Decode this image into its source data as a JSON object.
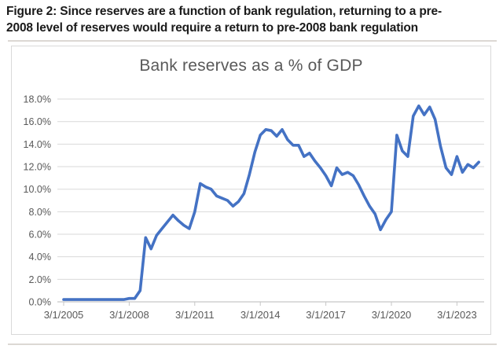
{
  "figure": {
    "caption_lines": [
      "Figure 2: Since reserves are a function of bank regulation, returning to a pre-",
      "2008 level of reserves would require a return to pre-2008 bank regulation"
    ]
  },
  "chart_data": {
    "type": "line",
    "title": "Bank reserves as a % of GDP",
    "series": [
      {
        "name": "Bank reserves as a % of GDP",
        "x": [
          "3/1/2005",
          "6/1/2005",
          "9/1/2005",
          "12/1/2005",
          "3/1/2006",
          "6/1/2006",
          "9/1/2006",
          "12/1/2006",
          "3/1/2007",
          "6/1/2007",
          "9/1/2007",
          "12/1/2007",
          "3/1/2008",
          "6/1/2008",
          "9/1/2008",
          "12/1/2008",
          "3/1/2009",
          "6/1/2009",
          "9/1/2009",
          "12/1/2009",
          "3/1/2010",
          "6/1/2010",
          "9/1/2010",
          "12/1/2010",
          "3/1/2011",
          "6/1/2011",
          "9/1/2011",
          "12/1/2011",
          "3/1/2012",
          "6/1/2012",
          "9/1/2012",
          "12/1/2012",
          "3/1/2013",
          "6/1/2013",
          "9/1/2013",
          "12/1/2013",
          "3/1/2014",
          "6/1/2014",
          "9/1/2014",
          "12/1/2014",
          "3/1/2015",
          "6/1/2015",
          "9/1/2015",
          "12/1/2015",
          "3/1/2016",
          "6/1/2016",
          "9/1/2016",
          "12/1/2016",
          "3/1/2017",
          "6/1/2017",
          "9/1/2017",
          "12/1/2017",
          "3/1/2018",
          "6/1/2018",
          "9/1/2018",
          "12/1/2018",
          "3/1/2019",
          "6/1/2019",
          "9/1/2019",
          "12/1/2019",
          "3/1/2020",
          "6/1/2020",
          "9/1/2020",
          "12/1/2020",
          "3/1/2021",
          "6/1/2021",
          "9/1/2021",
          "12/1/2021",
          "3/1/2022",
          "6/1/2022",
          "9/1/2022",
          "12/1/2022",
          "3/1/2023",
          "6/1/2023",
          "9/1/2023",
          "12/1/2023",
          "3/1/2024"
        ],
        "values_pct": [
          0.2,
          0.2,
          0.2,
          0.2,
          0.2,
          0.2,
          0.2,
          0.2,
          0.2,
          0.2,
          0.2,
          0.2,
          0.3,
          0.3,
          1.0,
          5.7,
          4.7,
          5.9,
          6.5,
          7.1,
          7.7,
          7.2,
          6.8,
          6.5,
          8.0,
          10.5,
          10.2,
          10.0,
          9.4,
          9.2,
          9.0,
          8.5,
          8.9,
          9.6,
          11.3,
          13.3,
          14.8,
          15.3,
          15.2,
          14.7,
          15.3,
          14.4,
          13.9,
          13.9,
          12.9,
          13.2,
          12.5,
          11.9,
          11.2,
          10.3,
          11.9,
          11.3,
          11.5,
          11.2,
          10.4,
          9.4,
          8.5,
          7.8,
          6.4,
          7.3,
          8.0,
          14.8,
          13.4,
          12.9,
          16.5,
          17.4,
          16.6,
          17.3,
          16.2,
          13.8,
          11.9,
          11.3,
          12.9,
          11.5,
          12.2,
          11.9,
          12.4
        ]
      }
    ],
    "xlabel": "",
    "ylabel": "",
    "ylim_pct": [
      0,
      18
    ],
    "yticks_pct": [
      0,
      2,
      4,
      6,
      8,
      10,
      12,
      14,
      16,
      18
    ],
    "ytick_labels": [
      "0.0%",
      "2.0%",
      "4.0%",
      "6.0%",
      "8.0%",
      "10.0%",
      "12.0%",
      "14.0%",
      "16.0%",
      "18.0%"
    ],
    "xtick_labels": [
      "3/1/2005",
      "3/1/2008",
      "3/1/2011",
      "3/1/2014",
      "3/1/2017",
      "3/1/2020",
      "3/1/2023"
    ],
    "xtick_point_indices": [
      0,
      12,
      24,
      36,
      48,
      60,
      72
    ],
    "grid": "horizontal",
    "legend": "none",
    "line_color": "#4472C4",
    "gridline_color": "#d9d9d9",
    "axis_color": "#c6c6c6",
    "tick_label_color": "#595959",
    "title_color": "#595959"
  }
}
